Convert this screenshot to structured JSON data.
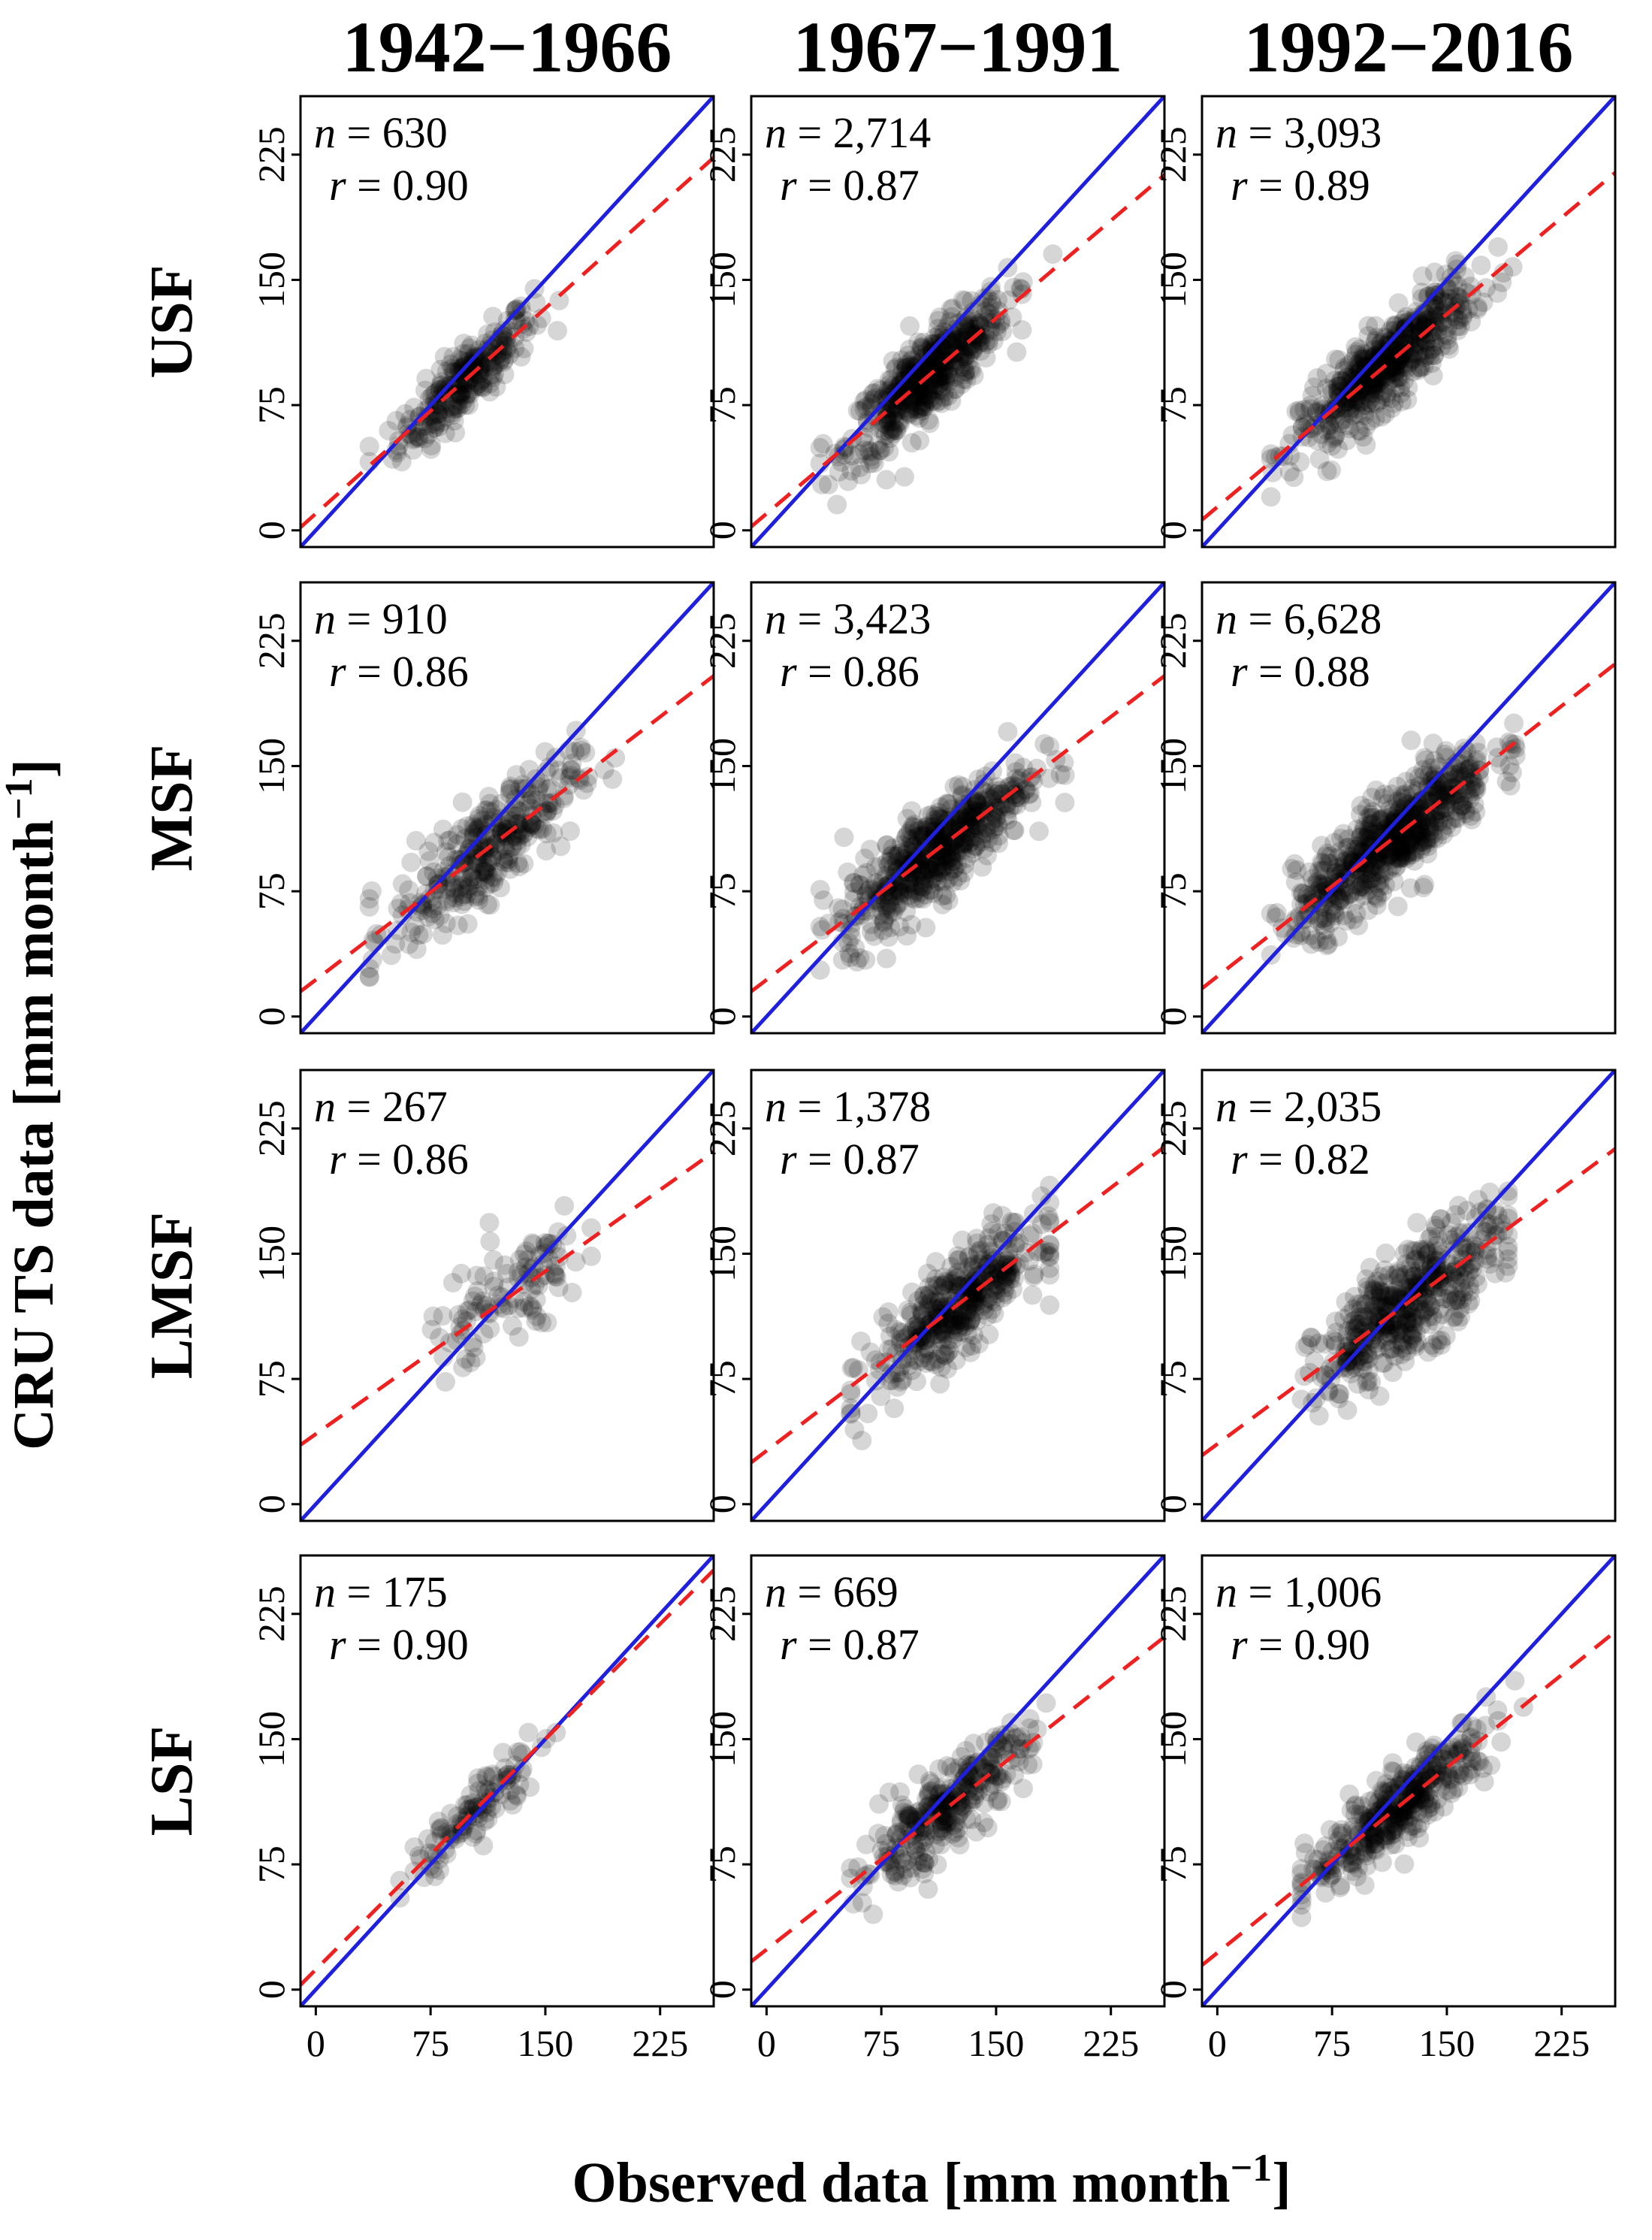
{
  "chart_data": {
    "type": "scatter",
    "title": "",
    "column_titles": [
      "1942−1966",
      "1967−1991",
      "1992−2016"
    ],
    "row_labels": [
      "USF",
      "MSF",
      "LMSF",
      "LSF"
    ],
    "xlabel": "Observed data [mm month",
    "xlabel_sup": "−1",
    "xlabel_end": "]",
    "ylabel": "CRU TS data [mm month",
    "ylabel_sup": "−1",
    "ylabel_end": "]",
    "xlim": [
      -10,
      260
    ],
    "ylim": [
      -10,
      260
    ],
    "x_ticks": [
      0,
      75,
      150,
      225
    ],
    "y_ticks": [
      0,
      75,
      150,
      225
    ],
    "tick_labels": [
      "0",
      "75",
      "150",
      "225"
    ],
    "n_label": "n",
    "r_label": "r",
    "equals": " = ",
    "reference_line": {
      "name": "1:1 line",
      "color": "#1f1fe0",
      "style": "solid"
    },
    "regression_line": {
      "name": "regression fit",
      "color": "#ee2020",
      "style": "dashed"
    },
    "point_color": "#000000",
    "panels": [
      {
        "row": "USF",
        "period": "1942−1966",
        "n": "630",
        "r": "0.90",
        "intercept": 10,
        "slope": 0.82,
        "x_range": [
          35,
          185
        ],
        "center": [
          98,
          96
        ],
        "spread": [
          22,
          10
        ],
        "points": 260
      },
      {
        "row": "USF",
        "period": "1967−1991",
        "n": "2,714",
        "r": "0.87",
        "intercept": 10,
        "slope": 0.78,
        "x_range": [
          35,
          195
        ],
        "center": [
          105,
          96
        ],
        "spread": [
          26,
          12
        ],
        "points": 520
      },
      {
        "row": "USF",
        "period": "1992−2016",
        "n": "3,093",
        "r": "0.89",
        "intercept": 14,
        "slope": 0.77,
        "x_range": [
          35,
          200
        ],
        "center": [
          110,
          100
        ],
        "spread": [
          28,
          12
        ],
        "points": 560
      },
      {
        "row": "MSF",
        "period": "1942−1966",
        "n": "910",
        "r": "0.86",
        "intercept": 22,
        "slope": 0.7,
        "x_range": [
          35,
          200
        ],
        "center": [
          110,
          100
        ],
        "spread": [
          30,
          15
        ],
        "points": 320
      },
      {
        "row": "MSF",
        "period": "1967−1991",
        "n": "3,423",
        "r": "0.86",
        "intercept": 22,
        "slope": 0.7,
        "x_range": [
          35,
          195
        ],
        "center": [
          110,
          100
        ],
        "spread": [
          30,
          14
        ],
        "points": 560
      },
      {
        "row": "MSF",
        "period": "1992−2016",
        "n": "6,628",
        "r": "0.88",
        "intercept": 24,
        "slope": 0.72,
        "x_range": [
          35,
          195
        ],
        "center": [
          115,
          106
        ],
        "spread": [
          32,
          14
        ],
        "points": 640
      },
      {
        "row": "LMSF",
        "period": "1942−1966",
        "n": "267",
        "r": "0.86",
        "intercept": 42,
        "slope": 0.65,
        "x_range": [
          55,
          180
        ],
        "center": [
          125,
          125
        ],
        "spread": [
          28,
          16
        ],
        "points": 110
      },
      {
        "row": "LMSF",
        "period": "1967−1991",
        "n": "1,378",
        "r": "0.87",
        "intercept": 32,
        "slope": 0.7,
        "x_range": [
          55,
          185
        ],
        "center": [
          125,
          122
        ],
        "spread": [
          28,
          14
        ],
        "points": 420
      },
      {
        "row": "LMSF",
        "period": "1992−2016",
        "n": "2,035",
        "r": "0.82",
        "intercept": 36,
        "slope": 0.68,
        "x_range": [
          55,
          190
        ],
        "center": [
          125,
          122
        ],
        "spread": [
          30,
          16
        ],
        "points": 480
      },
      {
        "row": "LSF",
        "period": "1942−1966",
        "n": "175",
        "r": "0.90",
        "intercept": 12,
        "slope": 0.92,
        "x_range": [
          55,
          175
        ],
        "center": [
          105,
          106
        ],
        "spread": [
          22,
          9
        ],
        "points": 110
      },
      {
        "row": "LSF",
        "period": "1967−1991",
        "n": "669",
        "r": "0.87",
        "intercept": 24,
        "slope": 0.72,
        "x_range": [
          55,
          185
        ],
        "center": [
          115,
          106
        ],
        "spread": [
          28,
          12
        ],
        "points": 300
      },
      {
        "row": "LSF",
        "period": "1992−2016",
        "n": "1,006",
        "r": "0.90",
        "intercept": 22,
        "slope": 0.74,
        "x_range": [
          55,
          200
        ],
        "center": [
          120,
          112
        ],
        "spread": [
          30,
          11
        ],
        "points": 380
      }
    ]
  }
}
